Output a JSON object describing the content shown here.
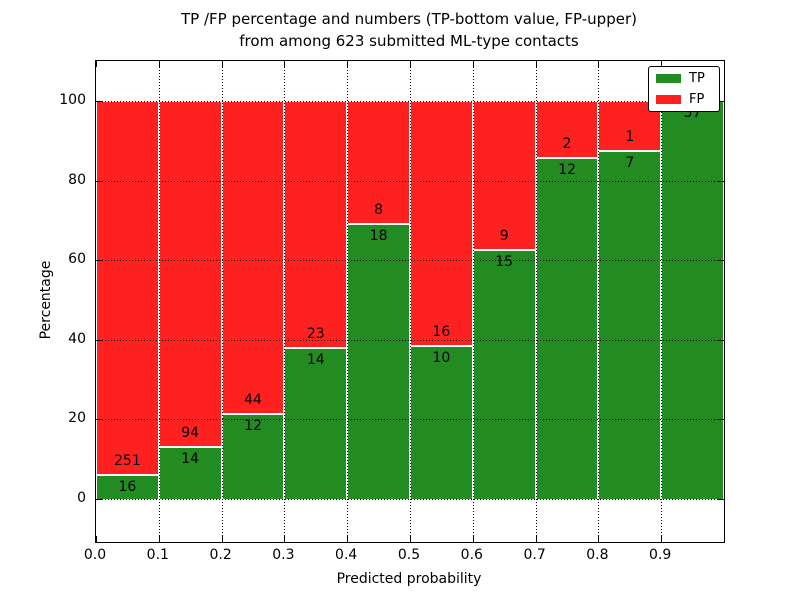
{
  "chart_data": {
    "type": "bar",
    "stacked": true,
    "normalized_to_percent": true,
    "title_line1": "TP /FP percentage and numbers (TP-bottom value, FP-upper)",
    "title_line2": "from among 623 submitted ML-type contacts",
    "xlabel": "Predicted probability",
    "ylabel": "Percentage",
    "xlim": [
      0.0,
      1.0
    ],
    "ylim": [
      -10.8,
      110.1
    ],
    "grid": true,
    "grid_style": "dotted",
    "bins": [
      [
        0.0,
        0.1
      ],
      [
        0.1,
        0.2
      ],
      [
        0.2,
        0.3
      ],
      [
        0.3,
        0.4
      ],
      [
        0.4,
        0.5
      ],
      [
        0.5,
        0.6
      ],
      [
        0.6,
        0.7
      ],
      [
        0.7,
        0.8
      ],
      [
        0.8,
        0.9
      ],
      [
        0.9,
        1.0
      ]
    ],
    "series": [
      {
        "name": "TP",
        "color": "#228b22",
        "counts": [
          16,
          14,
          12,
          14,
          18,
          10,
          15,
          12,
          7,
          57
        ]
      },
      {
        "name": "FP",
        "color": "#ff2020",
        "counts": [
          251,
          94,
          44,
          23,
          8,
          16,
          9,
          2,
          1,
          0
        ]
      }
    ],
    "tp_percent_heights": [
      5.99,
      12.96,
      21.43,
      37.84,
      69.23,
      38.46,
      62.5,
      85.71,
      87.5,
      100.0
    ],
    "fp_labels": [
      "251",
      "94",
      "44",
      "23",
      "8",
      "16",
      "9",
      "2",
      "1",
      null
    ],
    "tp_labels": [
      "16",
      "14",
      "12",
      "14",
      "18",
      "10",
      "15",
      "12",
      "7",
      "57"
    ],
    "xtick_values": [
      0.0,
      0.1,
      0.2,
      0.3,
      0.4,
      0.5,
      0.6,
      0.7,
      0.8,
      0.9
    ],
    "xtick_labels": [
      "0.0",
      "0.1",
      "0.2",
      "0.3",
      "0.4",
      "0.5",
      "0.6",
      "0.7",
      "0.8",
      "0.9"
    ],
    "ytick_values": [
      0,
      20,
      40,
      60,
      80,
      100
    ],
    "ytick_labels": [
      "0",
      "20",
      "40",
      "60",
      "80",
      "100"
    ],
    "legend": {
      "position": "upper right",
      "entries": [
        {
          "label": "TP",
          "color": "#228b22"
        },
        {
          "label": "FP",
          "color": "#ff2020"
        }
      ]
    }
  }
}
